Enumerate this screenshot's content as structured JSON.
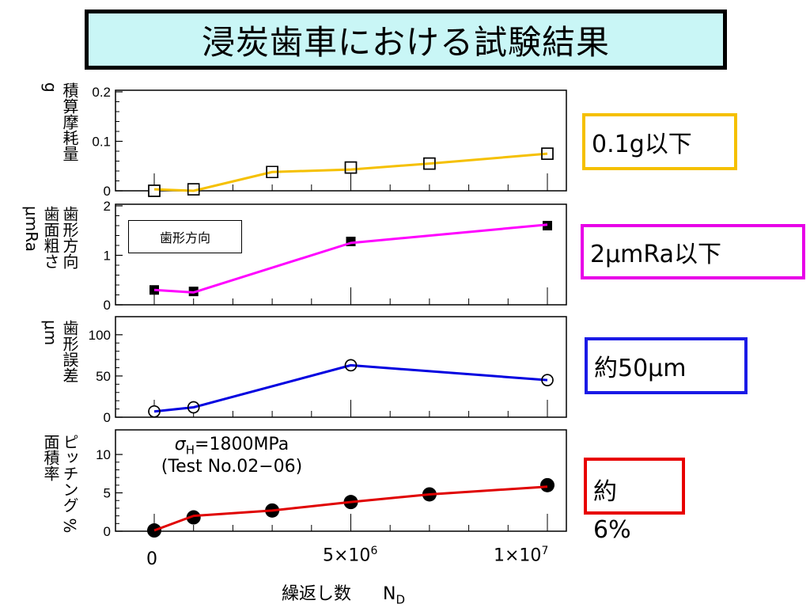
{
  "title": "浸炭歯車における試験結果",
  "x_axis": {
    "label": "繰返し数",
    "label_symbol": "N",
    "label_sub": "D",
    "ticks": [
      {
        "value": 0,
        "text": "0"
      },
      {
        "value": 5000000,
        "text": "5×10",
        "sup": "6"
      },
      {
        "value": 10000000,
        "text": "1×10",
        "sup": "7"
      }
    ]
  },
  "panels": [
    {
      "ylabel": "積算摩耗量\ng",
      "ytick_labels": [
        "0",
        "0.1",
        "0.2"
      ],
      "line_color": "#f5c000",
      "result_text": "0.1g以下",
      "result_color": "#f5c000"
    },
    {
      "ylabel": "歯形方向\n歯面粗さ\nμmRa",
      "ytick_labels": [
        "0",
        "1",
        "2"
      ],
      "line_color": "#ff00ff",
      "legend_text": "歯形方向",
      "result_text": "2μmRa以下",
      "result_color": "#e800e8"
    },
    {
      "ylabel": "歯形誤差\nμm",
      "ytick_labels": [
        "0",
        "50",
        "100"
      ],
      "line_color": "#0000e0",
      "result_text": "約50μm",
      "result_color": "#1a1ae6"
    },
    {
      "ylabel": "ピッチング %\n面積率",
      "ytick_labels": [
        "0",
        "5",
        "10"
      ],
      "line_color": "#e00000",
      "note_line1": "σ",
      "note_line1_sub": "H",
      "note_line1_rest": "=1800MPa",
      "note_line2": "(Test No.02−06)",
      "result_text": "約",
      "result_extra": "6%",
      "result_color": "#e80000"
    }
  ],
  "chart_data": [
    {
      "type": "line",
      "title": "",
      "ylabel": "積算摩耗量 g",
      "xlabel": "繰返し数 N_D",
      "ylim": [
        0,
        0.2
      ],
      "y_ticks": [
        0,
        0.1,
        0.2
      ],
      "marker": "open-square",
      "x": [
        0,
        1000000,
        3000000,
        5000000,
        7000000,
        10000000
      ],
      "values": [
        0.0,
        0.003,
        0.038,
        0.047,
        0.055,
        0.075
      ],
      "line_values": [
        0.003,
        0.0,
        0.038,
        0.043,
        0.055,
        0.075
      ]
    },
    {
      "type": "line",
      "title": "",
      "ylabel": "歯形方向 歯面粗さ μmRa",
      "xlabel": "繰返し数 N_D",
      "ylim": [
        0,
        2
      ],
      "y_ticks": [
        0,
        1,
        2
      ],
      "marker": "filled-square",
      "legend": "歯形方向",
      "x": [
        0,
        1000000,
        5000000,
        10000000
      ],
      "values": [
        0.3,
        0.27,
        1.28,
        1.6
      ],
      "line_values": [
        0.3,
        0.25,
        1.25,
        1.62
      ]
    },
    {
      "type": "line",
      "title": "",
      "ylabel": "歯形誤差 μm",
      "xlabel": "繰返し数 N_D",
      "ylim": [
        0,
        120
      ],
      "y_ticks": [
        0,
        50,
        100
      ],
      "marker": "open-circle",
      "x": [
        0,
        1000000,
        5000000,
        10000000
      ],
      "values": [
        7,
        12,
        63,
        45
      ],
      "line_values": [
        7,
        12,
        63,
        45
      ]
    },
    {
      "type": "line",
      "title": "",
      "ylabel": "ピッチング面積率 %",
      "xlabel": "繰返し数 N_D",
      "ylim": [
        0,
        13
      ],
      "y_ticks": [
        0,
        5,
        10
      ],
      "marker": "filled-circle",
      "x": [
        0,
        1000000,
        3000000,
        5000000,
        7000000,
        10000000
      ],
      "values": [
        0.1,
        1.8,
        2.7,
        3.8,
        4.8,
        6.0
      ],
      "line_values": [
        0.1,
        2.0,
        2.7,
        3.8,
        4.8,
        5.8
      ]
    }
  ]
}
